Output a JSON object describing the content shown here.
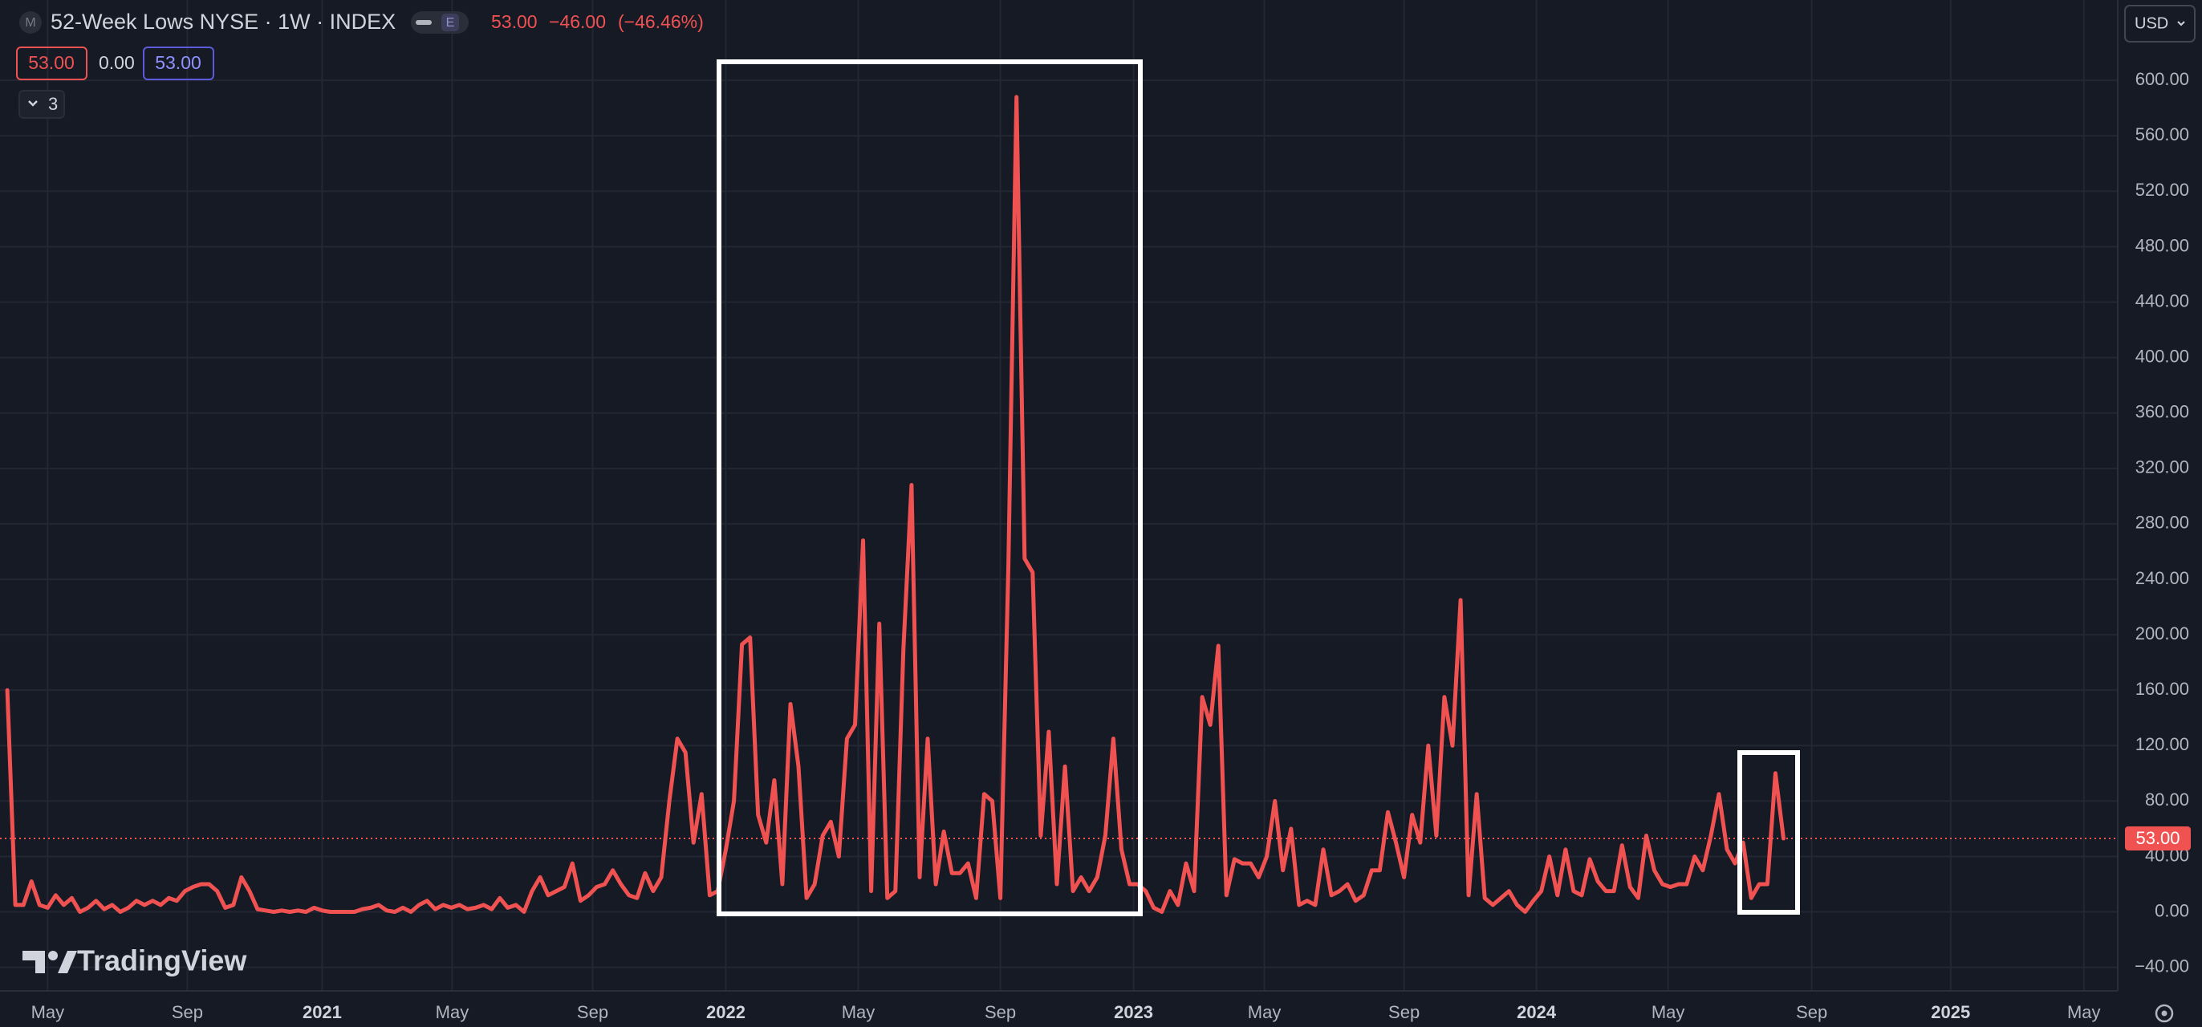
{
  "header": {
    "symbol": "52-Week Lows NYSE · 1W · INDEX",
    "exchange_badge": "M",
    "event_badge": "E",
    "last": "53.00",
    "change": "−46.00",
    "change_pct": "(−46.46%)",
    "legend_values": [
      "53.00",
      "0.00",
      "53.00"
    ],
    "indicators_count": "3",
    "currency": "USD",
    "brand": "TradingView",
    "price_label": "53.00"
  },
  "chart_data": {
    "type": "line",
    "series": [
      {
        "color": "#f05252",
        "values": [
          160,
          5,
          5,
          22,
          5,
          3,
          12,
          5,
          10,
          0,
          3,
          8,
          2,
          5,
          0,
          3,
          8,
          5,
          8,
          5,
          10,
          8,
          15,
          18,
          20,
          20,
          15,
          3,
          5,
          25,
          15,
          2,
          1,
          0,
          1,
          0,
          1,
          0,
          3,
          1,
          0,
          0,
          0,
          0,
          2,
          3,
          5,
          1,
          0,
          3,
          0,
          5,
          8,
          2,
          5,
          3,
          5,
          2,
          3,
          5,
          2,
          10,
          3,
          5,
          0,
          15,
          25,
          12,
          15,
          18,
          35,
          8,
          12,
          18,
          20,
          30,
          20,
          12,
          10,
          28,
          15,
          25,
          80,
          125,
          115,
          50,
          85,
          12,
          15,
          45,
          80,
          193,
          198,
          70,
          50,
          95,
          20,
          150,
          105,
          10,
          20,
          55,
          65,
          40,
          125,
          135,
          268,
          15,
          208,
          10,
          15,
          190,
          308,
          25,
          125,
          20,
          58,
          28,
          28,
          35,
          10,
          85,
          80,
          10,
          250,
          588,
          255,
          245,
          55,
          130,
          20,
          105,
          15,
          25,
          15,
          25,
          55,
          125,
          45,
          20,
          20,
          15,
          3,
          0,
          15,
          5,
          35,
          15,
          155,
          135,
          192,
          12,
          38,
          35,
          35,
          25,
          40,
          80,
          30,
          60,
          5,
          8,
          5,
          45,
          12,
          15,
          20,
          8,
          12,
          30,
          30,
          72,
          50,
          25,
          70,
          50,
          120,
          55,
          155,
          120,
          225,
          12,
          85,
          10,
          5,
          10,
          15,
          5,
          0,
          8,
          15,
          40,
          12,
          45,
          15,
          12,
          38,
          22,
          15,
          15,
          48,
          18,
          10,
          55,
          30,
          20,
          18,
          20,
          20,
          40,
          30,
          55,
          85,
          45,
          35,
          50,
          10,
          20,
          20,
          100,
          53
        ]
      }
    ],
    "xlim": [
      -0.9,
      260.9
    ],
    "xticks": [
      {
        "value": 5.0,
        "label": "May"
      },
      {
        "value": 22.3,
        "label": "Sep"
      },
      {
        "value": 39.0,
        "label": "2021"
      },
      {
        "value": 55.1,
        "label": "May"
      },
      {
        "value": 72.5,
        "label": "Sep"
      },
      {
        "value": 89.0,
        "label": "2022"
      },
      {
        "value": 105.4,
        "label": "May"
      },
      {
        "value": 123.0,
        "label": "Sep"
      },
      {
        "value": 139.5,
        "label": "2023"
      },
      {
        "value": 155.7,
        "label": "May"
      },
      {
        "value": 173.0,
        "label": "Sep"
      },
      {
        "value": 189.4,
        "label": "2024"
      },
      {
        "value": 205.7,
        "label": "May"
      },
      {
        "value": 223.5,
        "label": "Sep"
      },
      {
        "value": 240.7,
        "label": "2025"
      },
      {
        "value": 257.2,
        "label": "May"
      }
    ],
    "ylim": [
      -57,
      658
    ],
    "yticks": [
      {
        "value": -40,
        "label": "−40.00"
      },
      {
        "value": 0,
        "label": "0.00"
      },
      {
        "value": 40,
        "label": "40.00"
      },
      {
        "value": 80,
        "label": "80.00"
      },
      {
        "value": 120,
        "label": "120.00"
      },
      {
        "value": 160,
        "label": "160.00"
      },
      {
        "value": 200,
        "label": "200.00"
      },
      {
        "value": 240,
        "label": "240.00"
      },
      {
        "value": 280,
        "label": "280.00"
      },
      {
        "value": 320,
        "label": "320.00"
      },
      {
        "value": 360,
        "label": "360.00"
      },
      {
        "value": 400,
        "label": "400.00"
      },
      {
        "value": 440,
        "label": "440.00"
      },
      {
        "value": 480,
        "label": "480.00"
      },
      {
        "value": 520,
        "label": "520.00"
      },
      {
        "value": 560,
        "label": "560.00"
      },
      {
        "value": 600,
        "label": "600.00"
      }
    ],
    "grid": true
  }
}
